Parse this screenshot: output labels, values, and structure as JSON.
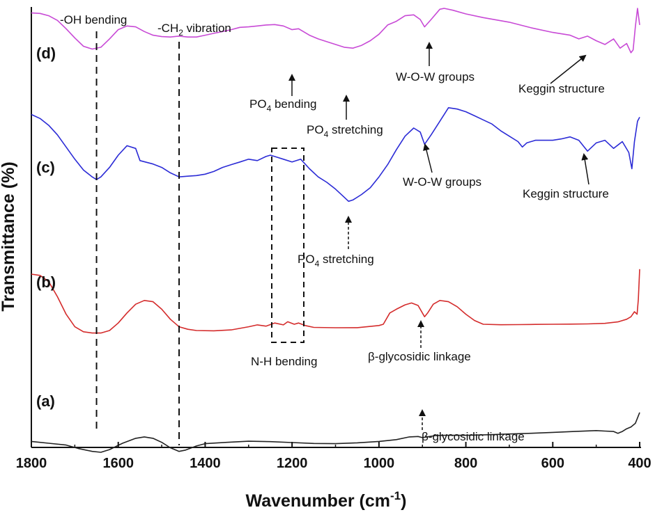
{
  "chart_data": {
    "type": "line",
    "title": "",
    "xlabel": "Wavenumber (cm",
    "xlabel_sup": "-1",
    "xlabel_close": ")",
    "ylabel": "Transmittance (%)",
    "xlim": [
      1800,
      400
    ],
    "x_reversed": true,
    "grid": false,
    "x_ticks": [
      1800,
      1600,
      1400,
      1200,
      1000,
      800,
      600,
      400
    ],
    "colors": {
      "a": "#222222",
      "b": "#d42b2b",
      "c": "#2b2bd6",
      "d": "#c84ad6"
    },
    "series": [
      {
        "key": "a",
        "label": "(a)",
        "color": "#222222",
        "points": [
          [
            1800,
            0.88
          ],
          [
            1760,
            0.9
          ],
          [
            1720,
            0.92
          ],
          [
            1690,
            0.96
          ],
          [
            1660,
            0.99
          ],
          [
            1640,
            1.0
          ],
          [
            1620,
            0.97
          ],
          [
            1590,
            0.9
          ],
          [
            1560,
            0.845
          ],
          [
            1540,
            0.83
          ],
          [
            1520,
            0.845
          ],
          [
            1500,
            0.89
          ],
          [
            1480,
            0.95
          ],
          [
            1460,
            0.99
          ],
          [
            1445,
            0.975
          ],
          [
            1420,
            0.93
          ],
          [
            1400,
            0.905
          ],
          [
            1350,
            0.89
          ],
          [
            1300,
            0.878
          ],
          [
            1250,
            0.882
          ],
          [
            1200,
            0.892
          ],
          [
            1150,
            0.902
          ],
          [
            1100,
            0.905
          ],
          [
            1050,
            0.895
          ],
          [
            1000,
            0.88
          ],
          [
            960,
            0.86
          ],
          [
            930,
            0.83
          ],
          [
            910,
            0.825
          ],
          [
            900,
            0.838
          ],
          [
            890,
            0.83
          ],
          [
            870,
            0.815
          ],
          [
            850,
            0.812
          ],
          [
            800,
            0.812
          ],
          [
            750,
            0.806
          ],
          [
            700,
            0.798
          ],
          [
            650,
            0.79
          ],
          [
            600,
            0.78
          ],
          [
            550,
            0.77
          ],
          [
            500,
            0.76
          ],
          [
            480,
            0.765
          ],
          [
            460,
            0.77
          ],
          [
            450,
            0.79
          ],
          [
            440,
            0.77
          ],
          [
            430,
            0.74
          ],
          [
            420,
            0.72
          ],
          [
            410,
            0.68
          ],
          [
            400,
            0.56
          ]
        ]
      },
      {
        "key": "b",
        "label": "(b)",
        "color": "#d42b2b",
        "points": [
          [
            1800,
            0.3
          ],
          [
            1780,
            0.31
          ],
          [
            1760,
            0.36
          ],
          [
            1740,
            0.48
          ],
          [
            1720,
            0.62
          ],
          [
            1700,
            0.72
          ],
          [
            1680,
            0.76
          ],
          [
            1660,
            0.77
          ],
          [
            1640,
            0.77
          ],
          [
            1620,
            0.75
          ],
          [
            1600,
            0.69
          ],
          [
            1580,
            0.61
          ],
          [
            1560,
            0.54
          ],
          [
            1540,
            0.51
          ],
          [
            1520,
            0.52
          ],
          [
            1500,
            0.58
          ],
          [
            1480,
            0.66
          ],
          [
            1460,
            0.72
          ],
          [
            1440,
            0.74
          ],
          [
            1420,
            0.75
          ],
          [
            1380,
            0.752
          ],
          [
            1340,
            0.745
          ],
          [
            1300,
            0.72
          ],
          [
            1280,
            0.705
          ],
          [
            1260,
            0.715
          ],
          [
            1240,
            0.69
          ],
          [
            1220,
            0.705
          ],
          [
            1210,
            0.68
          ],
          [
            1195,
            0.7
          ],
          [
            1185,
            0.69
          ],
          [
            1170,
            0.71
          ],
          [
            1150,
            0.725
          ],
          [
            1100,
            0.728
          ],
          [
            1050,
            0.727
          ],
          [
            1000,
            0.71
          ],
          [
            990,
            0.7
          ],
          [
            975,
            0.61
          ],
          [
            960,
            0.58
          ],
          [
            940,
            0.545
          ],
          [
            925,
            0.53
          ],
          [
            910,
            0.55
          ],
          [
            900,
            0.61
          ],
          [
            895,
            0.64
          ],
          [
            888,
            0.61
          ],
          [
            875,
            0.54
          ],
          [
            860,
            0.51
          ],
          [
            840,
            0.52
          ],
          [
            820,
            0.56
          ],
          [
            800,
            0.62
          ],
          [
            780,
            0.67
          ],
          [
            760,
            0.7
          ],
          [
            720,
            0.704
          ],
          [
            680,
            0.703
          ],
          [
            640,
            0.701
          ],
          [
            600,
            0.7
          ],
          [
            560,
            0.699
          ],
          [
            520,
            0.697
          ],
          [
            480,
            0.693
          ],
          [
            450,
            0.681
          ],
          [
            430,
            0.66
          ],
          [
            420,
            0.64
          ],
          [
            412,
            0.6
          ],
          [
            406,
            0.62
          ],
          [
            403,
            0.5
          ],
          [
            400,
            0.26
          ]
        ]
      },
      {
        "key": "c",
        "label": "(c)",
        "color": "#2b2bd6",
        "points": [
          [
            1800,
            0.1
          ],
          [
            1780,
            0.13
          ],
          [
            1760,
            0.18
          ],
          [
            1740,
            0.25
          ],
          [
            1720,
            0.34
          ],
          [
            1700,
            0.43
          ],
          [
            1680,
            0.51
          ],
          [
            1660,
            0.56
          ],
          [
            1650,
            0.58
          ],
          [
            1640,
            0.56
          ],
          [
            1620,
            0.49
          ],
          [
            1600,
            0.4
          ],
          [
            1580,
            0.33
          ],
          [
            1560,
            0.35
          ],
          [
            1550,
            0.44
          ],
          [
            1520,
            0.465
          ],
          [
            1500,
            0.49
          ],
          [
            1480,
            0.53
          ],
          [
            1460,
            0.56
          ],
          [
            1440,
            0.555
          ],
          [
            1420,
            0.55
          ],
          [
            1400,
            0.54
          ],
          [
            1380,
            0.52
          ],
          [
            1360,
            0.49
          ],
          [
            1340,
            0.47
          ],
          [
            1320,
            0.45
          ],
          [
            1300,
            0.43
          ],
          [
            1280,
            0.44
          ],
          [
            1260,
            0.41
          ],
          [
            1250,
            0.4
          ],
          [
            1240,
            0.41
          ],
          [
            1220,
            0.43
          ],
          [
            1200,
            0.45
          ],
          [
            1180,
            0.43
          ],
          [
            1160,
            0.5
          ],
          [
            1140,
            0.56
          ],
          [
            1120,
            0.6
          ],
          [
            1100,
            0.65
          ],
          [
            1080,
            0.71
          ],
          [
            1070,
            0.74
          ],
          [
            1060,
            0.73
          ],
          [
            1040,
            0.69
          ],
          [
            1020,
            0.64
          ],
          [
            1000,
            0.56
          ],
          [
            980,
            0.47
          ],
          [
            960,
            0.36
          ],
          [
            940,
            0.26
          ],
          [
            920,
            0.2
          ],
          [
            905,
            0.23
          ],
          [
            895,
            0.32
          ],
          [
            880,
            0.25
          ],
          [
            860,
            0.15
          ],
          [
            840,
            0.05
          ],
          [
            820,
            0.06
          ],
          [
            800,
            0.08
          ],
          [
            780,
            0.11
          ],
          [
            760,
            0.14
          ],
          [
            740,
            0.17
          ],
          [
            720,
            0.22
          ],
          [
            700,
            0.26
          ],
          [
            680,
            0.3
          ],
          [
            670,
            0.34
          ],
          [
            660,
            0.31
          ],
          [
            640,
            0.29
          ],
          [
            600,
            0.29
          ],
          [
            580,
            0.28
          ],
          [
            560,
            0.265
          ],
          [
            540,
            0.29
          ],
          [
            520,
            0.37
          ],
          [
            500,
            0.31
          ],
          [
            480,
            0.29
          ],
          [
            460,
            0.35
          ],
          [
            440,
            0.3
          ],
          [
            425,
            0.38
          ],
          [
            418,
            0.5
          ],
          [
            412,
            0.3
          ],
          [
            405,
            0.15
          ],
          [
            400,
            0.12
          ]
        ]
      },
      {
        "key": "d",
        "label": "(d)",
        "color": "#c84ad6",
        "points": [
          [
            1800,
            0.05
          ],
          [
            1780,
            0.055
          ],
          [
            1760,
            0.08
          ],
          [
            1740,
            0.13
          ],
          [
            1720,
            0.22
          ],
          [
            1700,
            0.32
          ],
          [
            1680,
            0.41
          ],
          [
            1660,
            0.44
          ],
          [
            1640,
            0.42
          ],
          [
            1620,
            0.33
          ],
          [
            1600,
            0.23
          ],
          [
            1580,
            0.19
          ],
          [
            1560,
            0.2
          ],
          [
            1540,
            0.25
          ],
          [
            1520,
            0.29
          ],
          [
            1500,
            0.305
          ],
          [
            1480,
            0.31
          ],
          [
            1460,
            0.3
          ],
          [
            1440,
            0.31
          ],
          [
            1420,
            0.31
          ],
          [
            1400,
            0.29
          ],
          [
            1380,
            0.27
          ],
          [
            1360,
            0.25
          ],
          [
            1340,
            0.23
          ],
          [
            1320,
            0.205
          ],
          [
            1300,
            0.2
          ],
          [
            1280,
            0.19
          ],
          [
            1260,
            0.18
          ],
          [
            1240,
            0.175
          ],
          [
            1220,
            0.19
          ],
          [
            1200,
            0.23
          ],
          [
            1185,
            0.22
          ],
          [
            1160,
            0.29
          ],
          [
            1140,
            0.33
          ],
          [
            1120,
            0.36
          ],
          [
            1100,
            0.39
          ],
          [
            1080,
            0.42
          ],
          [
            1060,
            0.43
          ],
          [
            1040,
            0.4
          ],
          [
            1020,
            0.35
          ],
          [
            1000,
            0.28
          ],
          [
            980,
            0.18
          ],
          [
            960,
            0.14
          ],
          [
            940,
            0.08
          ],
          [
            920,
            0.07
          ],
          [
            905,
            0.12
          ],
          [
            895,
            0.2
          ],
          [
            880,
            0.12
          ],
          [
            860,
            0.01
          ],
          [
            850,
            0.0
          ],
          [
            830,
            0.02
          ],
          [
            800,
            0.06
          ],
          [
            760,
            0.1
          ],
          [
            700,
            0.15
          ],
          [
            650,
            0.21
          ],
          [
            600,
            0.26
          ],
          [
            560,
            0.29
          ],
          [
            540,
            0.33
          ],
          [
            520,
            0.3
          ],
          [
            500,
            0.35
          ],
          [
            480,
            0.39
          ],
          [
            460,
            0.33
          ],
          [
            445,
            0.43
          ],
          [
            430,
            0.38
          ],
          [
            420,
            0.48
          ],
          [
            415,
            0.45
          ],
          [
            410,
            0.2
          ],
          [
            405,
            0.0
          ],
          [
            400,
            0.18
          ]
        ]
      }
    ],
    "reference_lines": [
      {
        "x": 1650,
        "label": "-OH bending"
      },
      {
        "x": 1460,
        "label": "-CH",
        "sub": "2",
        "suffix": " vibration"
      }
    ],
    "annotations": [
      {
        "curve": "d",
        "text": "W-O-W groups"
      },
      {
        "curve": "d",
        "text": "Keggin structure"
      },
      {
        "curve": "d",
        "text": "PO",
        "sub": "4",
        "suffix": " bending"
      },
      {
        "curve": "d",
        "text": "PO",
        "sub": "4",
        "suffix": " stretching"
      },
      {
        "curve": "c",
        "text": "W-O-W groups"
      },
      {
        "curve": "c",
        "text": "Keggin structure"
      },
      {
        "curve": "c",
        "text": "PO",
        "sub": "4",
        "suffix": " stretching"
      },
      {
        "curve": "b",
        "text": "N-H bending"
      },
      {
        "curve": "b",
        "text": "β-glycosidic linkage"
      },
      {
        "curve": "a",
        "text": "β-glycosidic linkage"
      }
    ]
  }
}
